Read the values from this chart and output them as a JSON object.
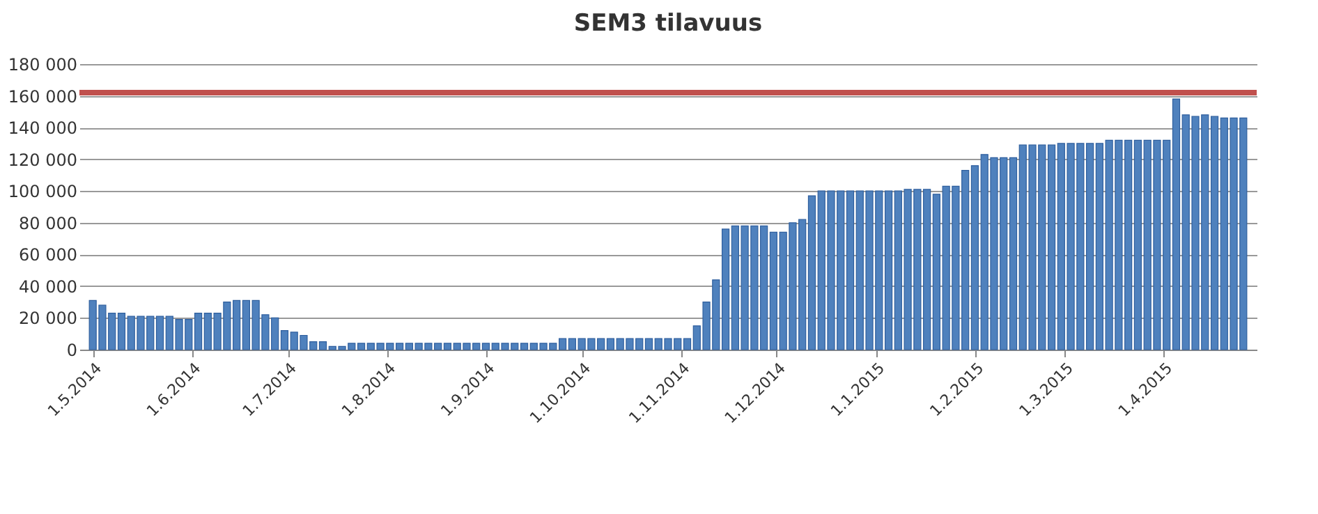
{
  "chart_data": {
    "type": "bar",
    "title": "SEM3 tilavuus",
    "x": [
      "2014-05-01",
      "2014-05-04",
      "2014-05-07",
      "2014-05-10",
      "2014-05-13",
      "2014-05-16",
      "2014-05-19",
      "2014-05-22",
      "2014-05-25",
      "2014-05-28",
      "2014-05-31",
      "2014-06-03",
      "2014-06-06",
      "2014-06-09",
      "2014-06-12",
      "2014-06-15",
      "2014-06-18",
      "2014-06-21",
      "2014-06-24",
      "2014-06-27",
      "2014-06-30",
      "2014-07-03",
      "2014-07-06",
      "2014-07-09",
      "2014-07-12",
      "2014-07-15",
      "2014-07-18",
      "2014-07-21",
      "2014-07-24",
      "2014-07-27",
      "2014-07-30",
      "2014-08-02",
      "2014-08-05",
      "2014-08-08",
      "2014-08-11",
      "2014-08-14",
      "2014-08-17",
      "2014-08-20",
      "2014-08-23",
      "2014-08-26",
      "2014-08-29",
      "2014-09-01",
      "2014-09-04",
      "2014-09-07",
      "2014-09-10",
      "2014-09-13",
      "2014-09-16",
      "2014-09-19",
      "2014-09-22",
      "2014-09-25",
      "2014-09-28",
      "2014-10-01",
      "2014-10-04",
      "2014-10-07",
      "2014-10-10",
      "2014-10-13",
      "2014-10-16",
      "2014-10-19",
      "2014-10-22",
      "2014-10-25",
      "2014-10-28",
      "2014-10-31",
      "2014-11-03",
      "2014-11-06",
      "2014-11-09",
      "2014-11-12",
      "2014-11-15",
      "2014-11-18",
      "2014-11-21",
      "2014-11-24",
      "2014-11-27",
      "2014-11-30",
      "2014-12-03",
      "2014-12-06",
      "2014-12-09",
      "2014-12-12",
      "2014-12-15",
      "2014-12-18",
      "2014-12-21",
      "2014-12-24",
      "2014-12-27",
      "2014-12-30",
      "2015-01-02",
      "2015-01-05",
      "2015-01-08",
      "2015-01-11",
      "2015-01-14",
      "2015-01-17",
      "2015-01-20",
      "2015-01-23",
      "2015-01-26",
      "2015-01-29",
      "2015-02-01",
      "2015-02-04",
      "2015-02-07",
      "2015-02-10",
      "2015-02-13",
      "2015-02-16",
      "2015-02-19",
      "2015-02-22",
      "2015-02-25",
      "2015-02-28",
      "2015-03-03",
      "2015-03-06",
      "2015-03-09",
      "2015-03-12",
      "2015-03-15",
      "2015-03-18",
      "2015-03-21",
      "2015-03-24",
      "2015-03-27",
      "2015-03-30",
      "2015-04-02",
      "2015-04-05",
      "2015-04-08",
      "2015-04-11",
      "2015-04-14",
      "2015-04-17",
      "2015-04-20",
      "2015-04-23",
      "2015-04-26"
    ],
    "values": [
      31000,
      28000,
      23000,
      23000,
      21000,
      21000,
      21000,
      21000,
      21000,
      19000,
      19000,
      23000,
      23000,
      23000,
      30000,
      31000,
      31000,
      31000,
      22000,
      20000,
      12000,
      11000,
      9000,
      5000,
      5000,
      2000,
      2000,
      4000,
      4000,
      4000,
      4000,
      4000,
      4000,
      4000,
      4000,
      4000,
      4000,
      4000,
      4000,
      4000,
      4000,
      4000,
      4000,
      4000,
      4000,
      4000,
      4000,
      4000,
      4000,
      7000,
      7000,
      7000,
      7000,
      7000,
      7000,
      7000,
      7000,
      7000,
      7000,
      7000,
      7000,
      7000,
      7000,
      15000,
      30000,
      44000,
      76000,
      78000,
      78000,
      78000,
      78000,
      74000,
      74000,
      80000,
      82000,
      97000,
      100000,
      100000,
      100000,
      100000,
      100000,
      100000,
      100000,
      100000,
      100000,
      101000,
      101000,
      101000,
      98000,
      103000,
      103000,
      113000,
      116000,
      123000,
      121000,
      121000,
      121000,
      129000,
      129000,
      129000,
      129000,
      130000,
      130000,
      130000,
      130000,
      130000,
      132000,
      132000,
      132000,
      132000,
      132000,
      132000,
      132000,
      158000,
      148000,
      147000,
      148000,
      147000,
      146000,
      146000,
      146000
    ],
    "color": "#4f81bd",
    "xlim": [
      "2014-04-29",
      "2015-04-28"
    ],
    "xticks": [
      {
        "value": "2014-05-01",
        "label": "1.5.2014"
      },
      {
        "value": "2014-06-01",
        "label": "1.6.2014"
      },
      {
        "value": "2014-07-01",
        "label": "1.7.2014"
      },
      {
        "value": "2014-08-01",
        "label": "1.8.2014"
      },
      {
        "value": "2014-09-01",
        "label": "1.9.2014"
      },
      {
        "value": "2014-10-01",
        "label": "1.10.2014"
      },
      {
        "value": "2014-11-01",
        "label": "1.11.2014"
      },
      {
        "value": "2014-12-01",
        "label": "1.12.2014"
      },
      {
        "value": "2015-01-01",
        "label": "1.1.2015"
      },
      {
        "value": "2015-02-01",
        "label": "1.2.2015"
      },
      {
        "value": "2015-03-01",
        "label": "1.3.2015"
      },
      {
        "value": "2015-04-01",
        "label": "1.4.2015"
      }
    ],
    "ylim": [
      0,
      180000
    ],
    "yticks": [
      0,
      {
        "value": 20000,
        "label": "20 000"
      },
      {
        "value": 40000,
        "label": "40 000"
      },
      {
        "value": 60000,
        "label": "60 000"
      },
      {
        "value": 80000,
        "label": "80 000"
      },
      {
        "value": 100000,
        "label": "100 000"
      },
      {
        "value": 120000,
        "label": "120 000"
      },
      {
        "value": 140000,
        "label": "140 000"
      },
      {
        "value": 160000,
        "label": "160 000"
      },
      {
        "value": 180000,
        "label": "180 000"
      }
    ],
    "ref_lines": [
      {
        "axis": "y",
        "value": 162000,
        "color": "#c0504d"
      }
    ],
    "grid": "y"
  }
}
